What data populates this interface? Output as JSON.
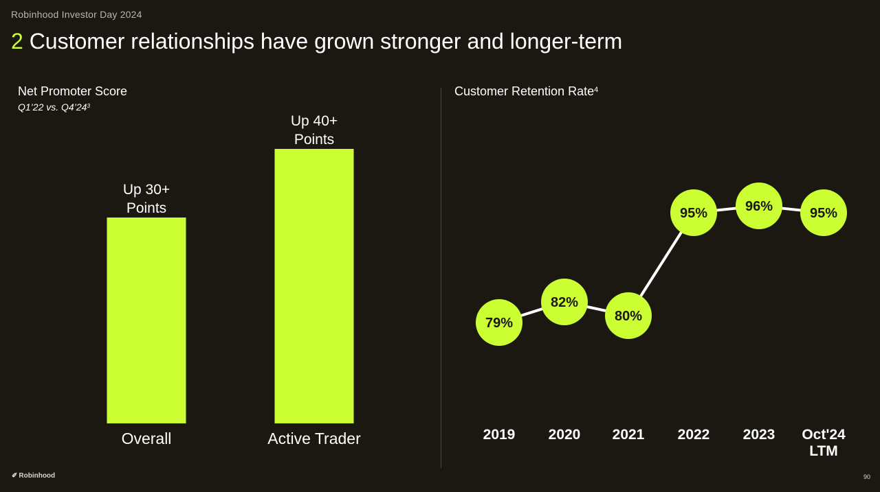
{
  "header": {
    "eyebrow": "Robinhood Investor Day 2024",
    "title_number": "2",
    "title_text": "Customer relationships have grown stronger and longer-term"
  },
  "left_panel": {
    "title": "Net Promoter Score",
    "subtitle": "Q1’22 vs. Q4’24",
    "subtitle_footnote": "3"
  },
  "right_panel": {
    "title": "Customer Retention Rate",
    "title_footnote": "4"
  },
  "chart_data": [
    {
      "type": "bar",
      "title": "Net Promoter Score",
      "subtitle": "Q1’22 vs. Q4’24",
      "categories": [
        "Overall",
        "Active Trader"
      ],
      "values": [
        30,
        40
      ],
      "data_labels": [
        [
          "Up 30+",
          "Points"
        ],
        [
          "Up 40+",
          "Points"
        ]
      ],
      "ylim": [
        0,
        52
      ],
      "grid": false,
      "bar_color": "#ccff33"
    },
    {
      "type": "line",
      "title": "Customer Retention Rate",
      "categories": [
        "2019",
        "2020",
        "2021",
        "2022",
        "2023",
        "Oct'24 LTM"
      ],
      "category_lines": [
        [
          "2019"
        ],
        [
          "2020"
        ],
        [
          "2021"
        ],
        [
          "2022"
        ],
        [
          "2023"
        ],
        [
          "Oct'24",
          "LTM"
        ]
      ],
      "values": [
        79,
        82,
        80,
        95,
        96,
        95
      ],
      "data_labels": [
        "79%",
        "82%",
        "80%",
        "95%",
        "96%",
        "95%"
      ],
      "ylim": [
        60,
        100
      ],
      "grid": false,
      "marker_color": "#ccff33",
      "line_color": "#ffffff"
    }
  ],
  "footer": {
    "brand": "Robinhood",
    "page_number": "90"
  }
}
